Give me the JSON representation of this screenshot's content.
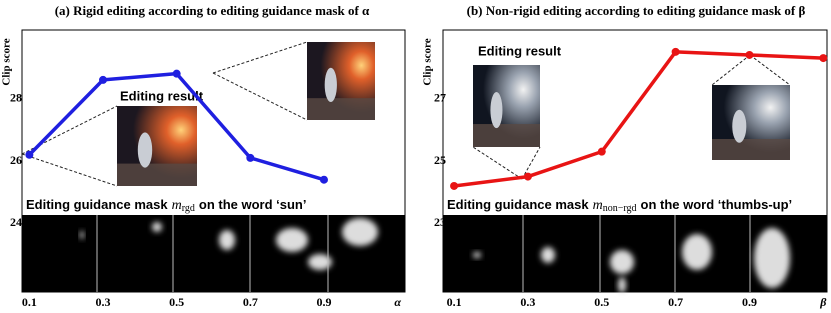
{
  "chart_data": [
    {
      "type": "line",
      "title": "(a) Rigid editing according to editing guidance mask of α",
      "y_label": "Clip score",
      "inset_label": "Editing result",
      "mask_caption": {
        "prefix": "Editing guidance mask",
        "symbol": "m",
        "subscript": "rgd",
        "suffix": "on the word ‘sun’"
      },
      "x": [
        0.1,
        0.3,
        0.5,
        0.7,
        0.9
      ],
      "xlim": [
        0.08,
        1.12
      ],
      "xticks": [
        0.1,
        0.3,
        0.5,
        0.7,
        0.9,
        {
          "value": 1.1,
          "label": "α"
        }
      ],
      "ylim": [
        21.8,
        30.2
      ],
      "yticks": [
        24,
        26,
        28
      ],
      "series": [
        {
          "color": "#1f1fe0",
          "values": [
            26.2,
            28.6,
            28.8,
            26.1,
            25.4
          ]
        }
      ]
    },
    {
      "type": "line",
      "title": "(b) Non-rigid editing according to editing guidance mask of β",
      "y_label": "Clip score",
      "inset_label": "Editing result",
      "mask_caption": {
        "prefix": "Editing guidance mask",
        "symbol": "m",
        "subscript": "non−rgd",
        "suffix": "on the word ‘thumbs-up’"
      },
      "x": [
        0.1,
        0.3,
        0.5,
        0.7,
        0.9,
        1.1
      ],
      "xlim": [
        0.07,
        1.11
      ],
      "xticks": [
        0.1,
        0.3,
        0.5,
        0.7,
        0.9,
        {
          "value": 1.1,
          "label": "β"
        }
      ],
      "ylim": [
        20.8,
        29.2
      ],
      "yticks": [
        23,
        25,
        27
      ],
      "series": [
        {
          "color": "#e81414",
          "values": [
            24.2,
            24.5,
            25.3,
            28.5,
            28.4,
            28.3
          ]
        }
      ]
    }
  ]
}
